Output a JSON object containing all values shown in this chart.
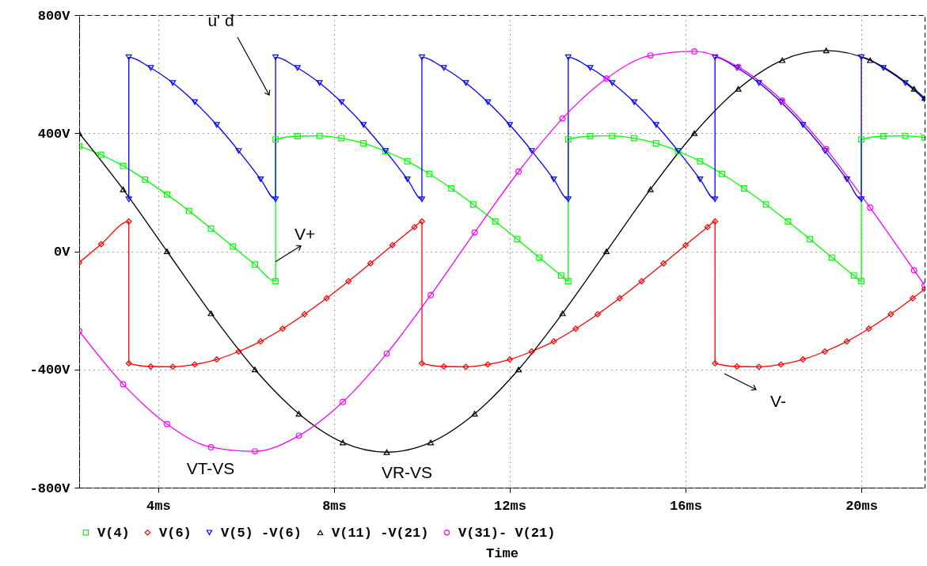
{
  "chart_data": {
    "type": "line",
    "xlabel": "Time",
    "xlim": [
      2.2,
      21.44
    ],
    "ylim": [
      -800,
      800
    ],
    "xticks": [
      {
        "value": 4,
        "label": "4ms"
      },
      {
        "value": 8,
        "label": "8ms"
      },
      {
        "value": 12,
        "label": "12ms"
      },
      {
        "value": 16,
        "label": "16ms"
      },
      {
        "value": 20,
        "label": "20ms"
      }
    ],
    "yticks": [
      {
        "value": -800,
        "label": "-800V"
      },
      {
        "value": -400,
        "label": "-400V"
      },
      {
        "value": 0,
        "label": "0V"
      },
      {
        "value": 400,
        "label": "400V"
      },
      {
        "value": 800,
        "label": "800V"
      }
    ],
    "grid": true,
    "legend": "bottom",
    "series": [
      {
        "name": "V(4)",
        "color": "#00ff00",
        "marker": "square",
        "x": [
          2.2,
          2.7,
          3.2,
          3.7,
          4.2,
          4.7,
          5.2,
          5.7,
          6.2,
          6.67,
          6.67,
          7.17,
          7.67,
          8.17,
          8.67,
          9.17,
          9.67,
          10.17,
          10.67,
          11.17,
          11.67,
          12.17,
          12.67,
          13.17,
          13.33,
          13.33,
          13.83,
          14.33,
          14.83,
          15.33,
          15.83,
          16.33,
          16.83,
          17.33,
          17.83,
          18.33,
          18.83,
          19.33,
          19.83,
          20,
          20,
          20.5,
          21,
          21.44
        ],
        "values": [
          356,
          327,
          289,
          243,
          192,
          137,
          77,
          16,
          -45,
          -101,
          379,
          390,
          391,
          383,
          366,
          339,
          305,
          262,
          213,
          159,
          101,
          41,
          -21,
          -82,
          -101,
          379,
          390,
          391,
          383,
          366,
          339,
          305,
          262,
          213,
          159,
          101,
          41,
          -21,
          -82,
          -101,
          379,
          390,
          391,
          385
        ]
      },
      {
        "name": "V(6)",
        "color": "#ff0000",
        "marker": "diamond",
        "x": [
          2.2,
          2.7,
          3.33,
          3.33,
          3.83,
          4.33,
          4.83,
          5.33,
          5.83,
          6.33,
          6.83,
          7.33,
          7.83,
          8.33,
          8.83,
          9.33,
          9.83,
          10,
          10,
          10.5,
          11,
          11.5,
          12,
          12.5,
          13,
          13.5,
          14,
          14.5,
          15,
          15.5,
          16,
          16.5,
          16.67,
          16.67,
          17.17,
          17.67,
          18.17,
          18.67,
          19.17,
          19.67,
          20.17,
          20.67,
          21.17,
          21.44
        ],
        "values": [
          -38,
          24,
          101,
          -379,
          -390,
          -391,
          -383,
          -366,
          -339,
          -305,
          -262,
          -213,
          -159,
          -101,
          -41,
          21,
          82,
          101,
          -379,
          -390,
          -391,
          -383,
          -366,
          -339,
          -305,
          -262,
          -213,
          -159,
          -101,
          -41,
          21,
          82,
          101,
          -379,
          -390,
          -391,
          -383,
          -366,
          -339,
          -305,
          -262,
          -213,
          -159,
          -128
        ]
      },
      {
        "name": "V(5) -V(6)",
        "color": "#0000ff",
        "marker": "triangle-down",
        "x": [
          3.33,
          3.33,
          3.83,
          4.33,
          4.83,
          5.33,
          5.83,
          6.33,
          6.67,
          6.67,
          7.17,
          7.67,
          8.17,
          8.67,
          9.17,
          9.67,
          10,
          10,
          10.5,
          11,
          11.5,
          12,
          12.5,
          13,
          13.33,
          13.33,
          13.83,
          14.33,
          14.83,
          15.33,
          15.83,
          16.33,
          16.67,
          16.67,
          17.17,
          17.67,
          18.17,
          18.67,
          19.17,
          19.67,
          20,
          20,
          20.5,
          21,
          21.44
        ],
        "values": [
          176,
          657,
          621,
          570,
          505,
          428,
          340,
          244,
          176,
          657,
          621,
          570,
          505,
          428,
          340,
          244,
          176,
          657,
          621,
          570,
          505,
          428,
          340,
          244,
          176,
          657,
          621,
          570,
          505,
          428,
          340,
          244,
          176,
          657,
          621,
          570,
          505,
          428,
          340,
          244,
          176,
          657,
          621,
          570,
          514
        ]
      },
      {
        "name": "V(11) -V(21)",
        "color": "#000000",
        "marker": "triangle",
        "x": [
          2.2,
          3.2,
          4.2,
          5.2,
          6.2,
          7.2,
          8.2,
          9.2,
          10.2,
          11.2,
          12.2,
          13.2,
          14.2,
          15.2,
          16.2,
          17.2,
          18.2,
          19.2,
          20.2,
          21.2,
          21.44
        ],
        "values": [
          400,
          210,
          0,
          -210,
          -400,
          -550,
          -647,
          -680,
          -647,
          -550,
          -400,
          -210,
          0,
          210,
          400,
          550,
          647,
          680,
          647,
          550,
          519
        ]
      },
      {
        "name": "V(31)- V(21)",
        "color": "#ff00ff",
        "marker": "circle",
        "x": [
          2.2,
          3.2,
          4.2,
          5.2,
          6.2,
          7.2,
          8.2,
          9.2,
          10.2,
          11.2,
          12.2,
          13.2,
          14.2,
          15.2,
          16.2,
          17.2,
          18.2,
          19.2,
          20.2,
          21.2,
          21.44
        ],
        "values": [
          -270,
          -450,
          -585,
          -663,
          -677,
          -624,
          -510,
          -346,
          -148,
          64,
          270,
          450,
          585,
          663,
          677,
          624,
          510,
          346,
          148,
          -64,
          -115
        ]
      }
    ],
    "annotations": [
      "u' d",
      {
        "text": "V+",
        "x": 6.67,
        "y": -35
      },
      "V-",
      "VT-VS",
      "VR-VS"
    ]
  }
}
